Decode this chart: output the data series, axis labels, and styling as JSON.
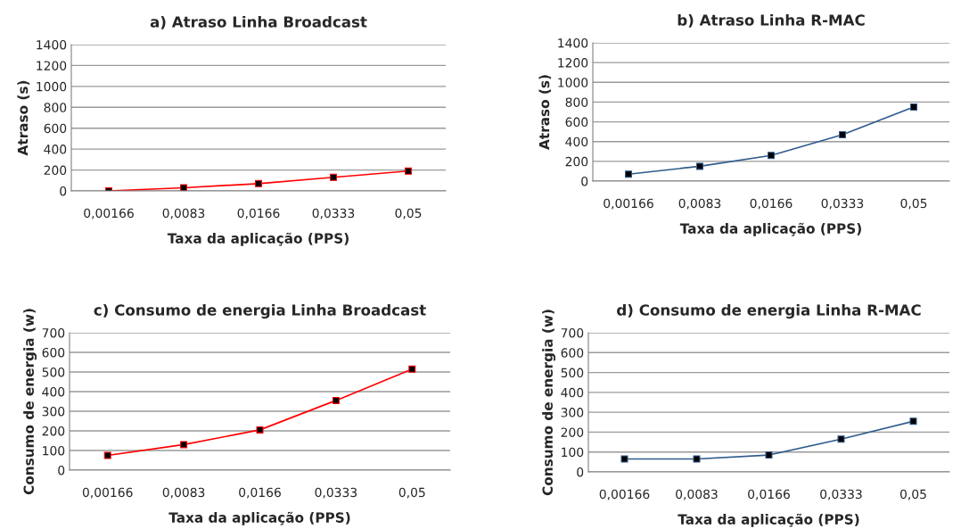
{
  "chart_data": [
    {
      "type": "line",
      "title": "a) Atraso Linha Broadcast",
      "xlabel": "Taxa da aplicação (PPS)",
      "ylabel": "Atraso (s)",
      "categories": [
        "0,00166",
        "0,0083",
        "0,0166",
        "0,0333",
        "0,05"
      ],
      "series": [
        {
          "color": "#ff0000",
          "values": [
            0,
            30,
            70,
            130,
            190
          ]
        }
      ],
      "ylim": [
        0,
        1400
      ],
      "yticks": [
        0,
        200,
        400,
        600,
        800,
        1000,
        1200,
        1400
      ],
      "grid": "y",
      "marker": "square"
    },
    {
      "type": "line",
      "title": "b) Atraso Linha R-MAC",
      "xlabel": "Taxa da aplicação (PPS)",
      "ylabel": "Atraso (s)",
      "categories": [
        "0,00166",
        "0,0083",
        "0,0166",
        "0,0333",
        "0,05"
      ],
      "series": [
        {
          "color": "#2f5b8c",
          "values": [
            70,
            150,
            260,
            470,
            750
          ]
        }
      ],
      "ylim": [
        0,
        1400
      ],
      "yticks": [
        0,
        200,
        400,
        600,
        800,
        1000,
        1200,
        1400
      ],
      "grid": "y",
      "marker": "square"
    },
    {
      "type": "line",
      "title": "c) Consumo de energia Linha Broadcast",
      "xlabel": "Taxa da aplicação (PPS)",
      "ylabel": "Consumo de energia (w)",
      "categories": [
        "0,00166",
        "0,0083",
        "0,0166",
        "0,0333",
        "0,05"
      ],
      "series": [
        {
          "color": "#ff0000",
          "values": [
            75,
            130,
            205,
            355,
            515
          ]
        }
      ],
      "ylim": [
        0,
        700
      ],
      "yticks": [
        0,
        100,
        200,
        300,
        400,
        500,
        600,
        700
      ],
      "grid": "y",
      "marker": "square"
    },
    {
      "type": "line",
      "title": "d) Consumo de energia Linha R-MAC",
      "xlabel": "Taxa da aplicação (PPS)",
      "ylabel": "Consumo de energia (w)",
      "categories": [
        "0,00166",
        "0,0083",
        "0,0166",
        "0,0333",
        "0,05"
      ],
      "series": [
        {
          "color": "#2f5b8c",
          "values": [
            65,
            65,
            85,
            165,
            255
          ]
        }
      ],
      "ylim": [
        0,
        700
      ],
      "yticks": [
        0,
        100,
        200,
        300,
        400,
        500,
        600,
        700
      ],
      "grid": "y",
      "marker": "square"
    }
  ]
}
